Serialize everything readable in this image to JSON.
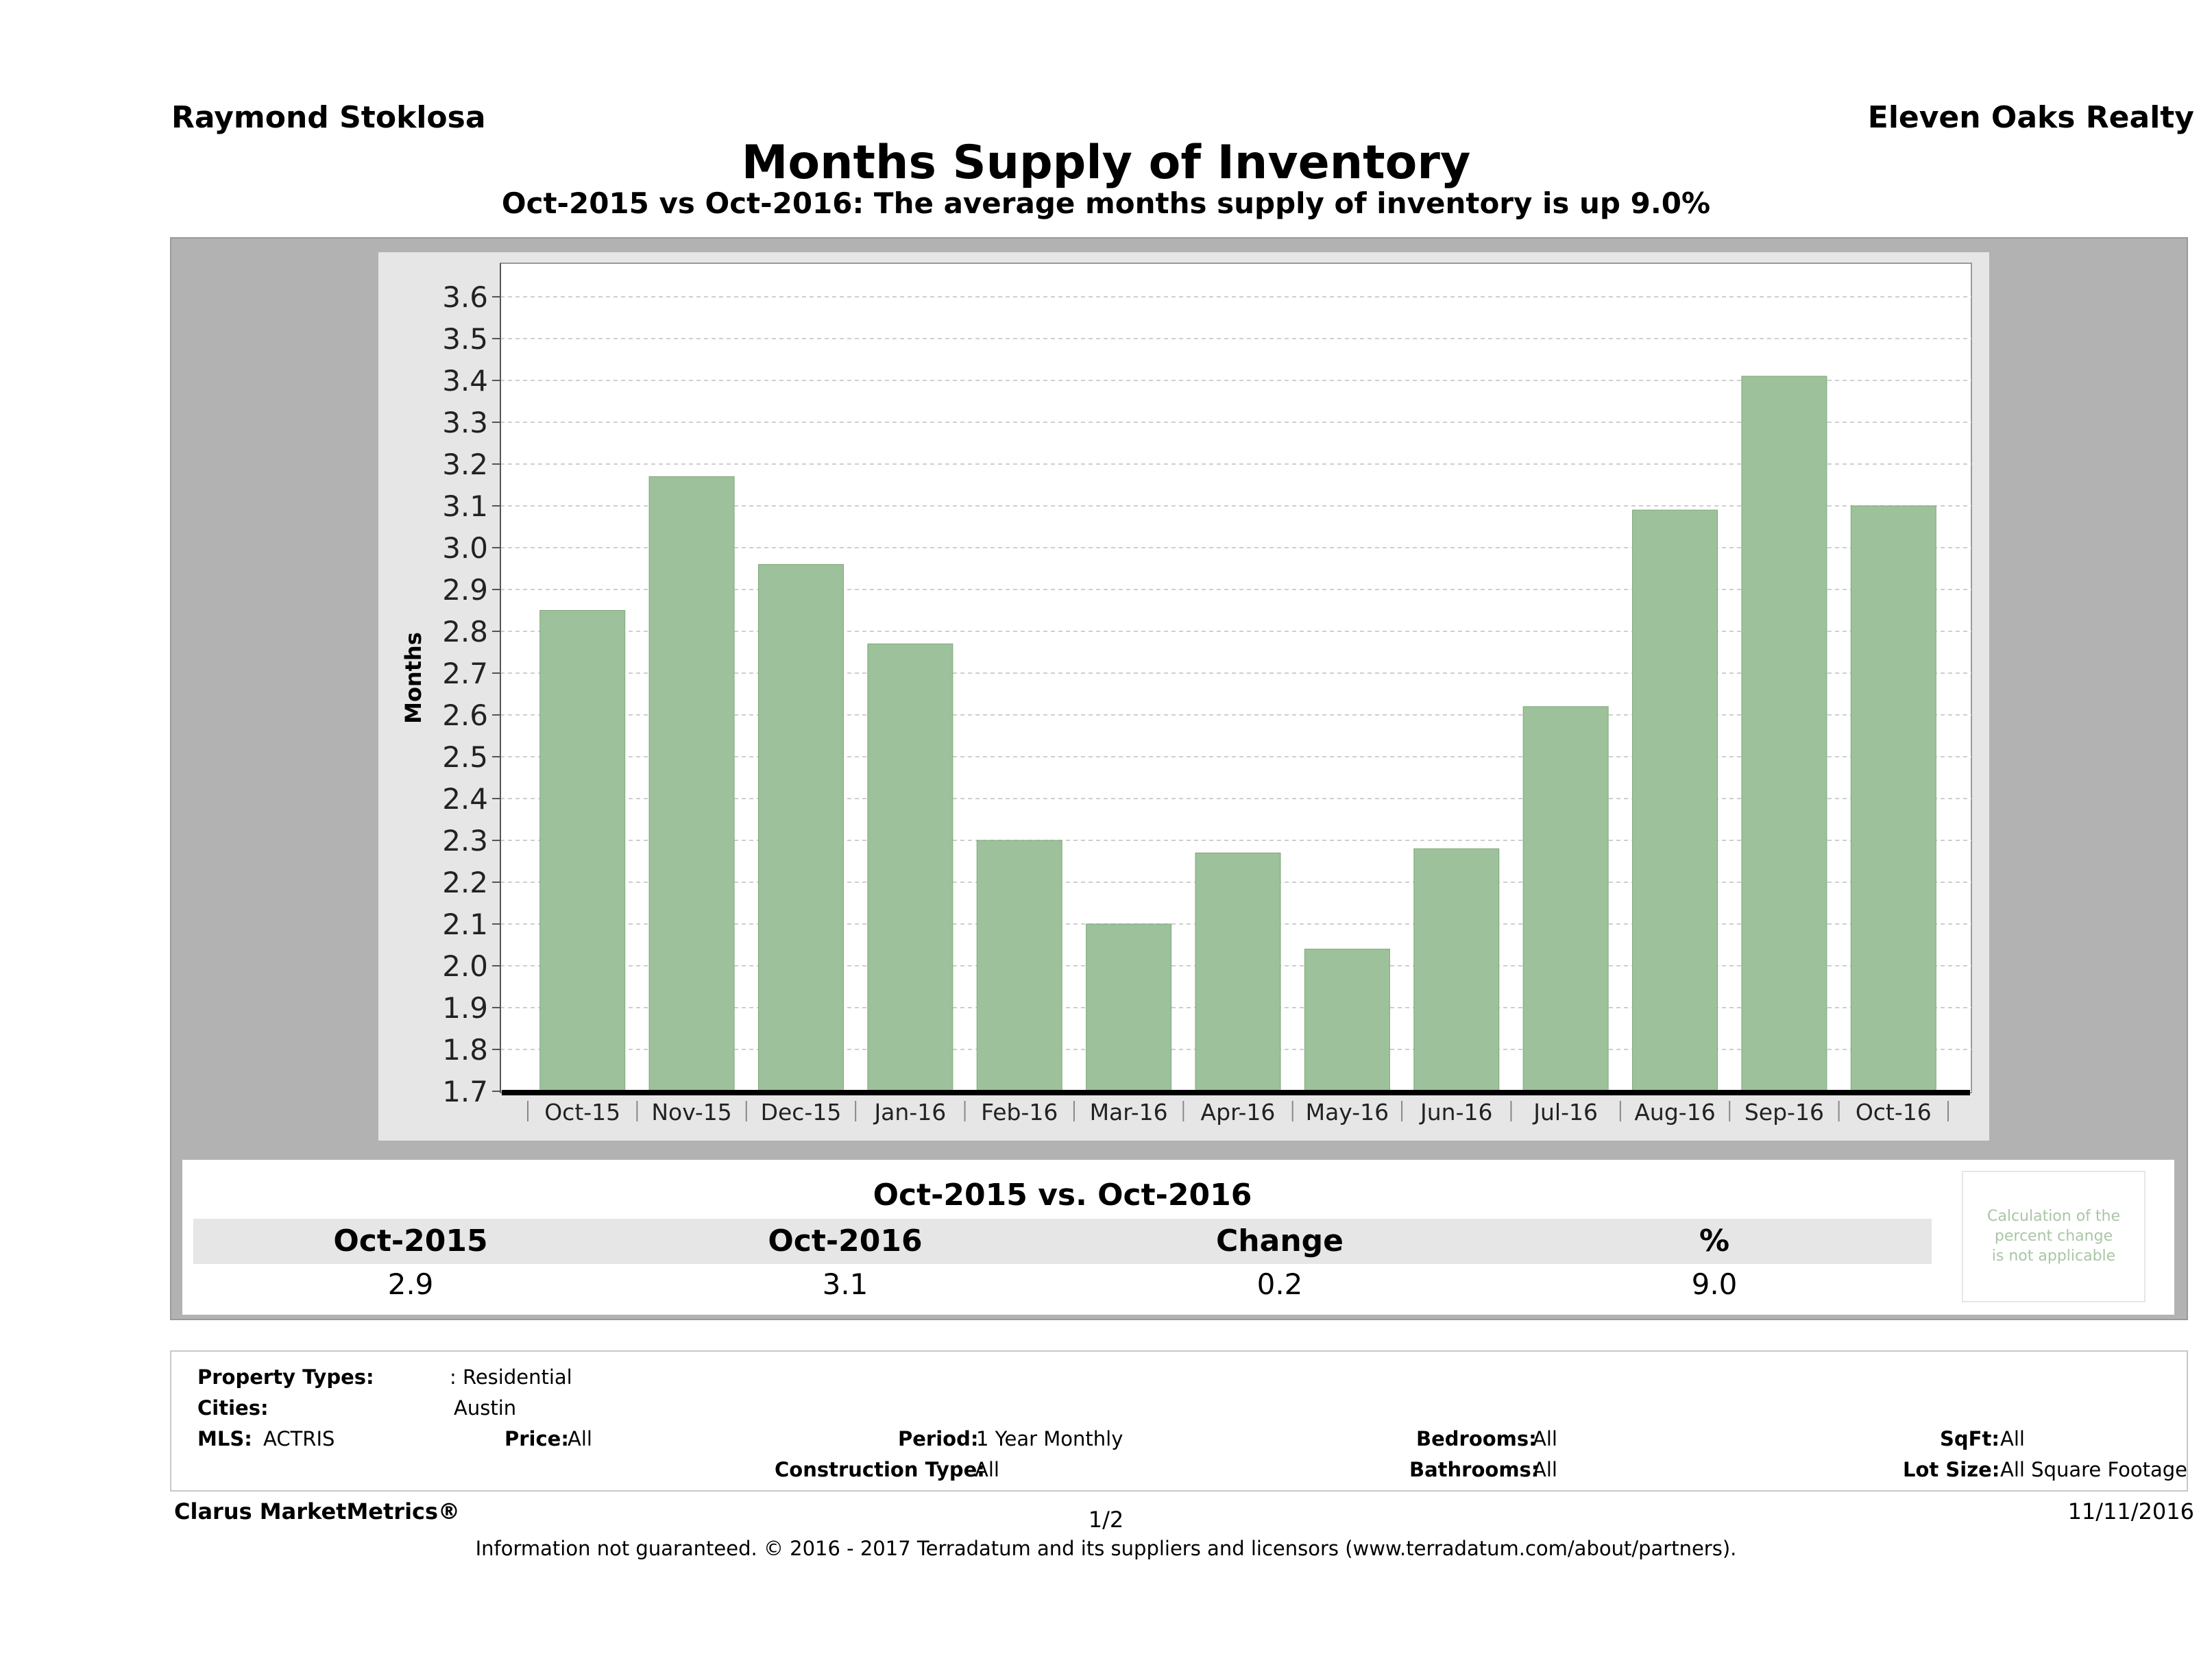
{
  "header": {
    "agent_name": "Raymond Stoklosa",
    "brokerage": "Eleven Oaks Realty",
    "title": "Months Supply of Inventory",
    "subtitle": "Oct-2015 vs Oct-2016: The average months supply of inventory is up 9.0%"
  },
  "chart_data": {
    "type": "bar",
    "categories": [
      "Oct-15",
      "Nov-15",
      "Dec-15",
      "Jan-16",
      "Feb-16",
      "Mar-16",
      "Apr-16",
      "May-16",
      "Jun-16",
      "Jul-16",
      "Aug-16",
      "Sep-16",
      "Oct-16"
    ],
    "values": [
      2.85,
      3.17,
      2.96,
      2.77,
      2.3,
      2.1,
      2.27,
      2.04,
      2.28,
      2.62,
      3.09,
      3.41,
      3.1
    ],
    "ylabel": "Months",
    "ylim": [
      1.7,
      3.6
    ],
    "yticks": [
      "3.6",
      "3.5",
      "3.4",
      "3.3",
      "3.2",
      "3.1",
      "3.0",
      "2.9",
      "2.8",
      "2.7",
      "2.6",
      "2.5",
      "2.4",
      "2.3",
      "2.2",
      "2.1",
      "2.0",
      "1.9",
      "1.8",
      "1.7"
    ],
    "grid": true,
    "bar_color": "#9dc19a"
  },
  "comparison": {
    "title": "Oct-2015 vs. Oct-2016",
    "headers": [
      "Oct-2015",
      "Oct-2016",
      "Change",
      "%"
    ],
    "values": [
      "2.9",
      "3.1",
      "0.2",
      "9.0"
    ],
    "note": [
      "Calculation of the",
      "percent change",
      "is not applicable"
    ]
  },
  "filters": {
    "property_types_label": "Property Types:",
    "property_types_value": ": Residential",
    "cities_label": "Cities:",
    "cities_value": "Austin",
    "mls_label": "MLS:",
    "mls_value": "ACTRIS",
    "price_label": "Price:",
    "price_value": "All",
    "period_label": "Period:",
    "period_value": "1 Year Monthly",
    "construction_label": "Construction Type:",
    "construction_value": "All",
    "bedrooms_label": "Bedrooms:",
    "bedrooms_value": "All",
    "bathrooms_label": "Bathrooms:",
    "bathrooms_value": "All",
    "sqft_label": "SqFt:",
    "sqft_value": "All",
    "lot_label": "Lot Size:",
    "lot_value": "All Square Footage"
  },
  "footer": {
    "product": "Clarus MarketMetrics®",
    "page": "1/2",
    "date": "11/11/2016",
    "disclaimer": "Information not guaranteed. © 2016 - 2017 Terradatum and its suppliers and licensors (www.terradatum.com/about/partners)."
  }
}
